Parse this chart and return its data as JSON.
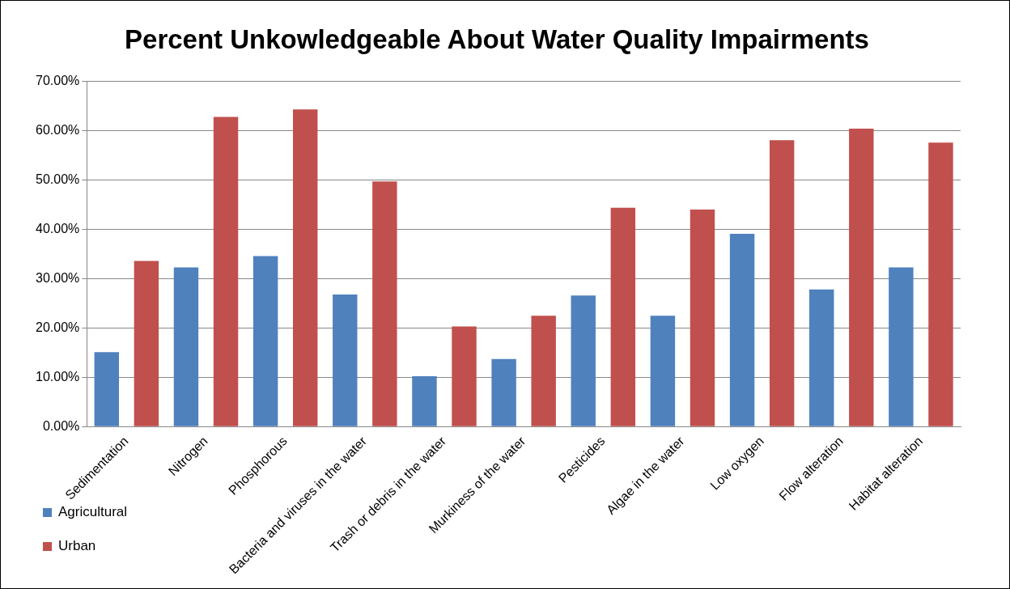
{
  "chart_data": {
    "type": "bar",
    "title": "Percent Unkowledgeable About Water Quality Impairments",
    "categories": [
      "Sedimentation",
      "Nitrogen",
      "Phosphorous",
      "Bacteria and viruses in the water",
      "Trash or debris in the water",
      "Murkiness of the water",
      "Pesticides",
      "Algae in the water",
      "Low oxygen",
      "Flow alteration",
      "Habitat alteration"
    ],
    "series": [
      {
        "name": "Agricultural",
        "color": "#4f81bd",
        "values": [
          15.1,
          32.3,
          34.6,
          26.8,
          10.2,
          13.7,
          26.6,
          22.5,
          39.1,
          27.8,
          32.3
        ]
      },
      {
        "name": "Urban",
        "color": "#c0504d",
        "values": [
          33.6,
          62.8,
          64.3,
          49.7,
          20.3,
          22.5,
          44.4,
          44.0,
          58.1,
          60.4,
          57.6
        ]
      }
    ],
    "ylim": [
      0,
      70
    ],
    "yticks": [
      {
        "value": 0,
        "label": "0.00%"
      },
      {
        "value": 10,
        "label": "10.00%"
      },
      {
        "value": 20,
        "label": "20.00%"
      },
      {
        "value": 30,
        "label": "30.00%"
      },
      {
        "value": 40,
        "label": "40.00%"
      },
      {
        "value": 50,
        "label": "50.00%"
      },
      {
        "value": 60,
        "label": "60.00%"
      },
      {
        "value": 70,
        "label": "70.00%"
      }
    ],
    "grid": "y",
    "legend": "bottom left"
  }
}
